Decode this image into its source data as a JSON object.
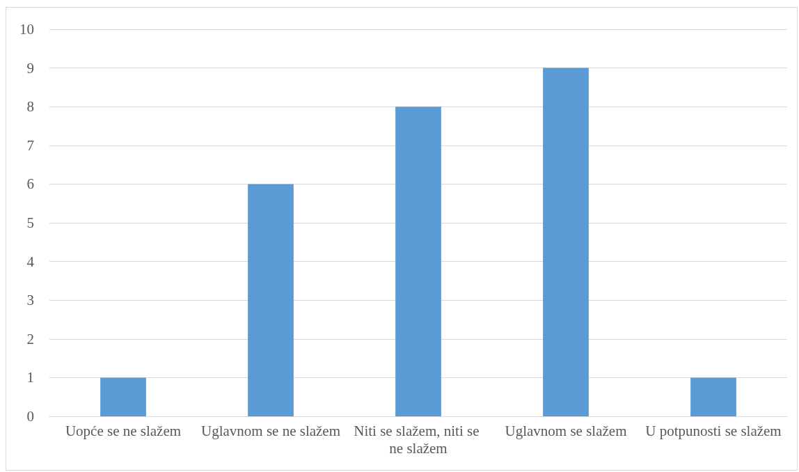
{
  "chart_data": {
    "type": "bar",
    "categories": [
      "Uopće se ne slažem",
      "Uglavnom se ne slažem",
      "Niti se slažem, niti se ne slažem",
      "Uglavnom se slažem",
      "U potpunosti se slažem"
    ],
    "values": [
      1,
      6,
      8,
      9,
      1
    ],
    "color": "#5b9bd5",
    "ylim": [
      0,
      10
    ],
    "yticks": [
      0,
      1,
      2,
      3,
      4,
      5,
      6,
      7,
      8,
      9,
      10
    ],
    "grid": "y"
  }
}
